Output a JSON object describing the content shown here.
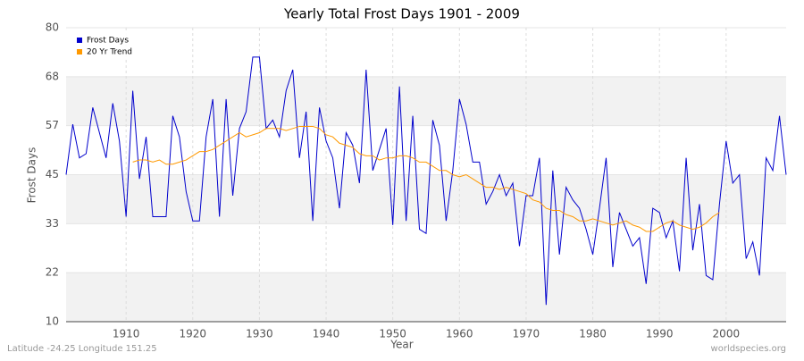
{
  "chart_data": {
    "type": "line",
    "title": "Yearly Total Frost Days 1901 - 2009",
    "x_label": "Year",
    "y_label": "Frost Days",
    "footer_left": "Latitude -24.25 Longitude 151.25",
    "footer_right": "worldspecies.org",
    "x": [
      1901,
      1902,
      1903,
      1904,
      1905,
      1906,
      1907,
      1908,
      1909,
      1910,
      1911,
      1912,
      1913,
      1914,
      1915,
      1916,
      1917,
      1918,
      1919,
      1920,
      1921,
      1922,
      1923,
      1924,
      1925,
      1926,
      1927,
      1928,
      1929,
      1930,
      1931,
      1932,
      1933,
      1934,
      1935,
      1936,
      1937,
      1938,
      1939,
      1940,
      1941,
      1942,
      1943,
      1944,
      1945,
      1946,
      1947,
      1948,
      1949,
      1950,
      1951,
      1952,
      1953,
      1954,
      1955,
      1956,
      1957,
      1958,
      1959,
      1960,
      1961,
      1962,
      1963,
      1964,
      1965,
      1966,
      1967,
      1968,
      1969,
      1970,
      1971,
      1972,
      1973,
      1974,
      1975,
      1976,
      1977,
      1978,
      1979,
      1980,
      1981,
      1982,
      1983,
      1984,
      1985,
      1986,
      1987,
      1988,
      1989,
      1990,
      1991,
      1992,
      1993,
      1994,
      1995,
      1996,
      1997,
      1998,
      1999,
      2000,
      2001,
      2002,
      2003,
      2004,
      2005,
      2006,
      2007,
      2008,
      2009
    ],
    "series": [
      {
        "name": "Frost Days",
        "color": "#0000cc",
        "values": [
          45,
          57,
          49,
          50,
          61,
          55,
          49,
          62,
          53,
          35,
          65,
          44,
          54,
          35,
          35,
          35,
          59,
          54,
          41,
          34,
          34,
          54,
          63,
          35,
          63,
          40,
          56,
          60,
          73,
          73,
          56,
          58,
          54,
          65,
          70,
          49,
          60,
          34,
          61,
          53,
          49,
          37,
          55,
          52,
          43,
          70,
          46,
          51,
          56,
          33,
          66,
          34,
          59,
          32,
          31,
          58,
          52,
          34,
          46,
          63,
          57,
          48,
          48,
          38,
          41,
          45,
          40,
          43,
          28,
          40,
          40,
          49,
          14,
          46,
          26,
          42,
          39,
          37,
          32,
          26,
          37,
          49,
          23,
          36,
          32,
          28,
          30,
          19,
          37,
          36,
          30,
          34,
          22,
          49,
          27,
          38,
          21,
          20,
          38,
          53,
          43,
          45,
          25,
          29,
          21,
          49,
          46,
          59,
          45
        ]
      },
      {
        "name": "20 Yr Trend",
        "color": "#ff9900",
        "values": [
          null,
          null,
          null,
          null,
          null,
          null,
          null,
          null,
          null,
          null,
          48,
          48.5,
          48.5,
          48,
          48.5,
          47.5,
          47.5,
          48,
          48.5,
          49.5,
          50.5,
          50.5,
          51,
          52,
          53,
          54,
          55,
          54,
          54.5,
          55,
          56,
          56,
          56,
          55.5,
          56,
          56.5,
          56.5,
          56.5,
          56,
          54.5,
          54,
          52.5,
          52,
          51.5,
          50,
          49.5,
          49.5,
          48.5,
          49,
          49,
          49.5,
          49.5,
          49,
          48,
          48,
          47,
          46,
          46,
          45,
          44.5,
          45,
          44,
          43,
          42,
          42,
          41.5,
          42,
          41.5,
          41,
          40.5,
          39,
          38.5,
          37,
          36.5,
          36.5,
          35.5,
          35,
          34,
          34,
          34.5,
          34,
          33.5,
          33,
          33.5,
          34,
          33,
          32.5,
          31.5,
          31.5,
          32.5,
          33.5,
          34,
          33,
          32.5,
          32,
          32.5,
          33.5,
          35,
          36,
          null,
          null,
          null,
          null,
          null,
          null,
          null,
          null,
          null,
          null
        ]
      }
    ],
    "xlim": [
      1901,
      2009
    ],
    "xticks": [
      1910,
      1920,
      1930,
      1940,
      1950,
      1960,
      1970,
      1980,
      1990,
      2000
    ],
    "ylim": [
      10,
      80
    ],
    "yticks": [
      10,
      {
        "value": 21.67,
        "label": "22"
      },
      {
        "value": 33.33,
        "label": "33"
      },
      45,
      {
        "value": 56.67,
        "label": "57"
      },
      {
        "value": 68.33,
        "label": "68"
      },
      80
    ],
    "grid": true,
    "legend": "top-left"
  }
}
